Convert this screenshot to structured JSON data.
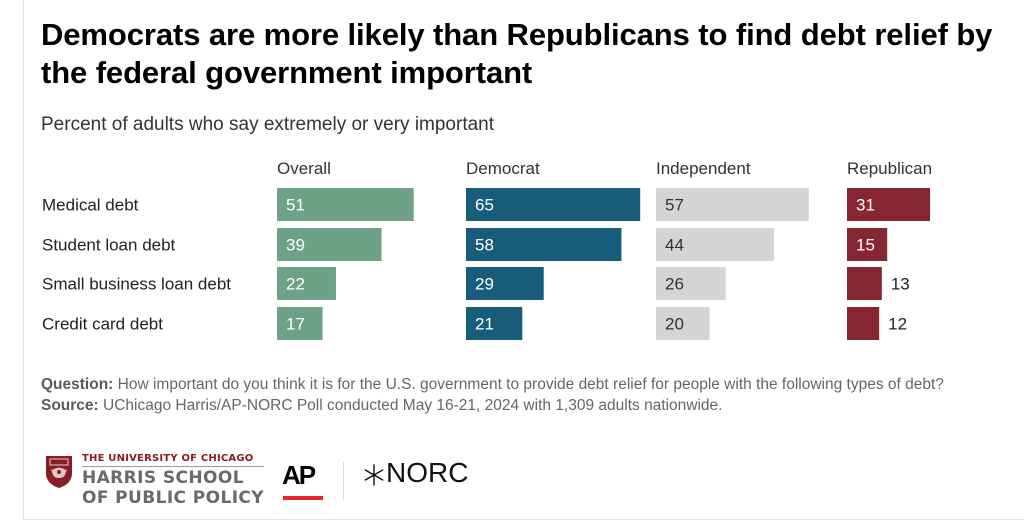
{
  "chart_data": {
    "type": "bar",
    "orientation": "horizontal",
    "layout": "small-multiples",
    "title": "Democrats are more likely than Republicans to find debt relief by the federal government important",
    "subtitle": "Percent of adults who say extremely or very important",
    "categories": [
      "Medical debt",
      "Student loan debt",
      "Small business loan debt",
      "Credit card debt"
    ],
    "series": [
      {
        "name": "Overall",
        "color": "#6da287",
        "label_color": "#ffffff",
        "values": [
          51,
          39,
          22,
          17
        ]
      },
      {
        "name": "Democrat",
        "color": "#175c7b",
        "label_color": "#ffffff",
        "values": [
          65,
          58,
          29,
          21
        ]
      },
      {
        "name": "Independent",
        "color": "#d4d4d4",
        "label_color": "#333333",
        "values": [
          57,
          44,
          26,
          20
        ]
      },
      {
        "name": "Republican",
        "color": "#862633",
        "label_color": "#ffffff",
        "values": [
          31,
          15,
          13,
          12
        ]
      }
    ],
    "xlim": [
      0,
      100
    ],
    "xlabel": "",
    "ylabel": "",
    "grid": false,
    "legend": "column headers"
  },
  "notes": {
    "question_label": "Question:",
    "question_text": " How important do you think it is for the U.S. government to provide debt relief for people with the following types of debt?",
    "source_label": "Source:",
    "source_text": " UChicago Harris/AP-NORC Poll conducted May 16-21, 2024 with 1,309 adults nationwide."
  },
  "logos": {
    "uchicago_top": "THE UNIVERSITY OF CHICAGO",
    "uchicago_line1": "HARRIS SCHOOL",
    "uchicago_line2": "OF PUBLIC POLICY",
    "ap": "AP",
    "norc": "NORC",
    "colors": {
      "uchicago": "#8a1c23",
      "ap_underline": "#e8262b"
    }
  }
}
